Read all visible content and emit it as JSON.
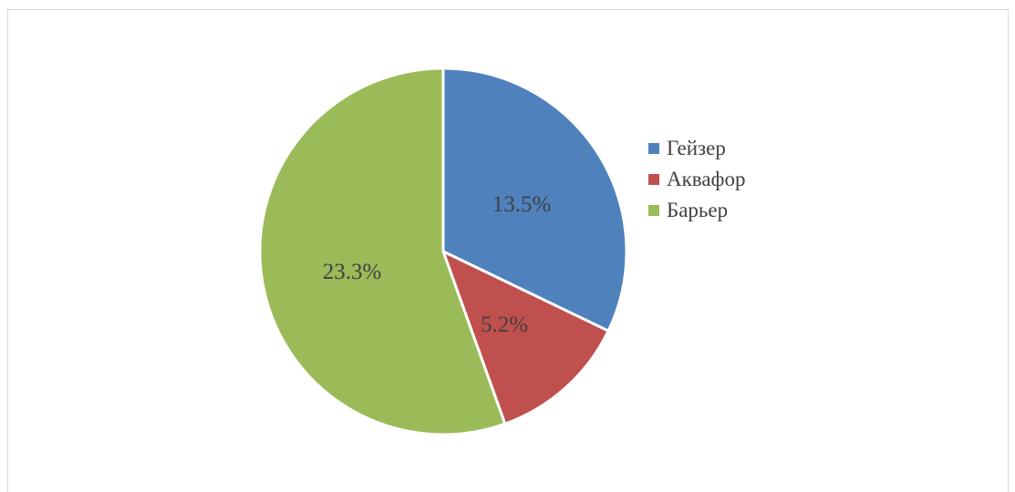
{
  "chart_data": {
    "type": "pie",
    "title": "",
    "categories": [
      "Гейзер",
      "Аквафор",
      "Барьер"
    ],
    "values": [
      13.5,
      5.2,
      23.3
    ],
    "data_labels": [
      "13.5%",
      "5.2%",
      "23.3%"
    ],
    "colors": [
      "#4F81BD",
      "#C0504D",
      "#9BBB59"
    ],
    "start_angle_deg": 0,
    "direction": "clockwise",
    "legend": "right"
  }
}
